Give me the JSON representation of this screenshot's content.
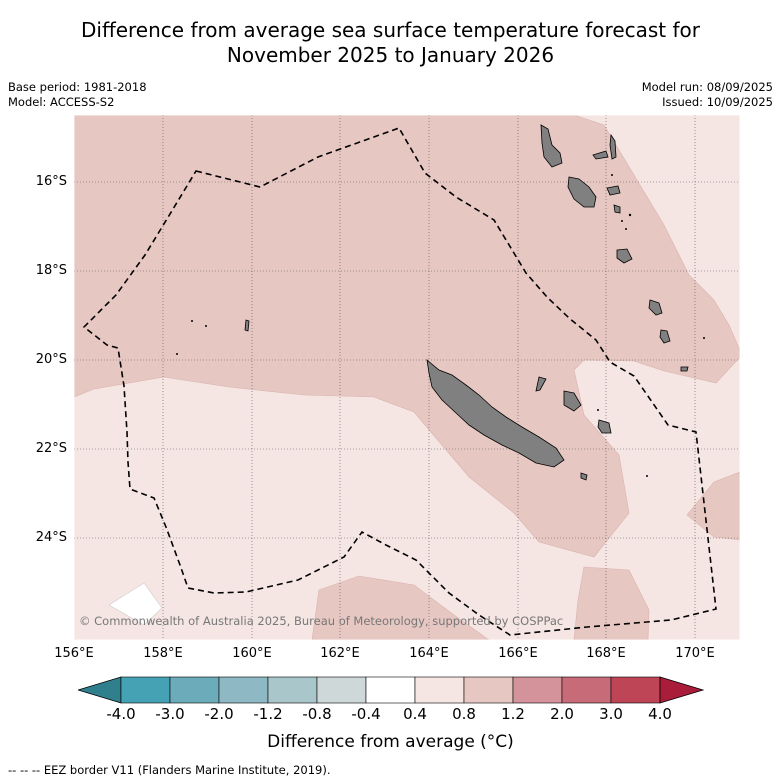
{
  "title_line1": "Difference from average sea surface temperature forecast for",
  "title_line2": "November 2025 to January 2026",
  "base_period": "Base period: 1981-2018",
  "model": "Model: ACCESS-S2",
  "model_run": "Model run: 08/09/2025",
  "issued": "Issued: 10/09/2025",
  "copyright": "© Commonwealth of Australia 2025, Bureau of Meteorology, supported by COSPPac",
  "lat_labels": [
    "16°S",
    "18°S",
    "20°S",
    "22°S",
    "24°S"
  ],
  "lon_labels": [
    "156°E",
    "158°E",
    "160°E",
    "162°E",
    "164°E",
    "166°E",
    "168°E",
    "170°E"
  ],
  "colorbar": {
    "ticks": [
      "-4.0",
      "-3.0",
      "-2.0",
      "-1.2",
      "-0.8",
      "-0.4",
      "0.4",
      "0.8",
      "1.2",
      "2.0",
      "3.0",
      "4.0"
    ],
    "colors": [
      "#2f7f8c",
      "#44a2b4",
      "#6cabba",
      "#8db8c4",
      "#a9c7cb",
      "#cfd8d8",
      "#ffffff",
      "#f5e6e4",
      "#e7c7c2",
      "#d4939a",
      "#c86b78",
      "#be4556",
      "#a91c3a"
    ],
    "label": "Difference from average (°C)"
  },
  "footnote": "--  --  -- EEZ border V11 (Flanders Marine Institute, 2019).",
  "map_colors": {
    "band_0_4_to_0_8": "#f5e6e4",
    "band_0_8_to_1_2": "#e7c7c2",
    "band_neg0_4_to_0_4": "#ffffff",
    "land": "#808080"
  }
}
